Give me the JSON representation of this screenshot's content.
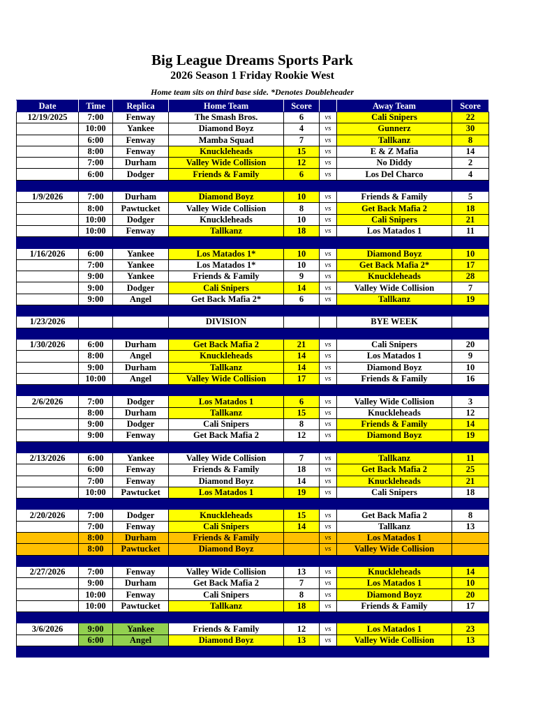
{
  "title": "Big League Dreams Sports Park",
  "subtitle": "2026 Season 1 Friday Rookie West",
  "note": "Home team sits on third base side.  *Denotes Doubleheader",
  "colors": {
    "header": "#000080",
    "winner": "#ffff00",
    "pending": "#ffc000",
    "changed": "#92d050"
  },
  "headers": [
    "Date",
    "Time",
    "Replica",
    "Home Team",
    "Score",
    "",
    "Away Team",
    "Score"
  ],
  "vs": "vs",
  "blocks": [
    {
      "date": "12/19/2025",
      "games": [
        {
          "time": "7:00",
          "field": "Fenway",
          "home": "The Smash Bros.",
          "hs": "6",
          "away": "Cali Snipers",
          "as": "22",
          "winner": "away"
        },
        {
          "time": "10:00",
          "field": "Yankee",
          "home": "Diamond Boyz",
          "hs": "4",
          "away": "Gunnerz",
          "as": "30",
          "winner": "away"
        },
        {
          "time": "6:00",
          "field": "Fenway",
          "home": "Mamba Squad",
          "hs": "7",
          "away": "Tallkanz",
          "as": "8",
          "winner": "away"
        },
        {
          "time": "8:00",
          "field": "Fenway",
          "home": "Knuckleheads",
          "hs": "15",
          "away": "E & Z Mafia",
          "as": "14",
          "winner": "home"
        },
        {
          "time": "7:00",
          "field": "Durham",
          "home": "Valley Wide Collision",
          "hs": "12",
          "away": "No Diddy",
          "as": "2",
          "winner": "home"
        },
        {
          "time": "6:00",
          "field": "Dodger",
          "home": "Friends & Family",
          "hs": "6",
          "away": "Los Del Charco",
          "as": "4",
          "winner": "home"
        }
      ]
    },
    {
      "date": "1/9/2026",
      "games": [
        {
          "time": "7:00",
          "field": "Durham",
          "home": "Diamond Boyz",
          "hs": "10",
          "away": "Friends & Family",
          "as": "5",
          "winner": "home"
        },
        {
          "time": "8:00",
          "field": "Pawtucket",
          "home": "Valley Wide Collision",
          "hs": "8",
          "away": "Get Back Mafia 2",
          "as": "18",
          "winner": "away"
        },
        {
          "time": "10:00",
          "field": "Dodger",
          "home": "Knuckleheads",
          "hs": "10",
          "away": "Cali Snipers",
          "as": "21",
          "winner": "away"
        },
        {
          "time": "10:00",
          "field": "Fenway",
          "home": "Tallkanz",
          "hs": "18",
          "away": "Los Matados 1",
          "as": "11",
          "winner": "home"
        }
      ]
    },
    {
      "date": "1/16/2026",
      "games": [
        {
          "time": "6:00",
          "field": "Yankee",
          "home": "Los Matados 1*",
          "hs": "10",
          "away": "Diamond Boyz",
          "as": "10",
          "winner": "both"
        },
        {
          "time": "7:00",
          "field": "Yankee",
          "home": "Los Matados 1*",
          "hs": "10",
          "away": "Get Back Mafia 2*",
          "as": "17",
          "winner": "away"
        },
        {
          "time": "9:00",
          "field": "Yankee",
          "home": "Friends & Family",
          "hs": "9",
          "away": "Knuckleheads",
          "as": "28",
          "winner": "away"
        },
        {
          "time": "9:00",
          "field": "Dodger",
          "home": "Cali Snipers",
          "hs": "14",
          "away": "Valley Wide Collision",
          "as": "7",
          "winner": "home"
        },
        {
          "time": "9:00",
          "field": "Angel",
          "home": "Get Back Mafia 2*",
          "hs": "6",
          "away": "Tallkanz",
          "as": "19",
          "winner": "away"
        }
      ]
    },
    {
      "date": "1/23/2026",
      "games": [
        {
          "time": "",
          "field": "",
          "home": "DIVISION",
          "hs": "",
          "away": "BYE WEEK",
          "as": "",
          "winner": "none",
          "novs": true
        }
      ]
    },
    {
      "date": "1/30/2026",
      "games": [
        {
          "time": "6:00",
          "field": "Durham",
          "home": "Get Back Mafia 2",
          "hs": "21",
          "away": "Cali Snipers",
          "as": "20",
          "winner": "home"
        },
        {
          "time": "8:00",
          "field": "Angel",
          "home": "Knuckleheads",
          "hs": "14",
          "away": "Los Matados 1",
          "as": "9",
          "winner": "home"
        },
        {
          "time": "9:00",
          "field": "Durham",
          "home": "Tallkanz",
          "hs": "14",
          "away": "Diamond Boyz",
          "as": "10",
          "winner": "home"
        },
        {
          "time": "10:00",
          "field": "Angel",
          "home": "Valley Wide Collision",
          "hs": "17",
          "away": "Friends & Family",
          "as": "16",
          "winner": "home"
        }
      ]
    },
    {
      "date": "2/6/2026",
      "games": [
        {
          "time": "7:00",
          "field": "Dodger",
          "home": "Los Matados 1",
          "hs": "6",
          "away": "Valley Wide Collision",
          "as": "3",
          "winner": "home"
        },
        {
          "time": "8:00",
          "field": "Durham",
          "home": "Tallkanz",
          "hs": "15",
          "away": "Knuckleheads",
          "as": "12",
          "winner": "home"
        },
        {
          "time": "9:00",
          "field": "Dodger",
          "home": "Cali Snipers",
          "hs": "8",
          "away": "Friends & Family",
          "as": "14",
          "winner": "away"
        },
        {
          "time": "9:00",
          "field": "Fenway",
          "home": "Get Back Mafia 2",
          "hs": "12",
          "away": "Diamond Boyz",
          "as": "19",
          "winner": "away"
        }
      ]
    },
    {
      "date": "2/13/2026",
      "games": [
        {
          "time": "6:00",
          "field": "Yankee",
          "home": "Valley Wide Collision",
          "hs": "7",
          "away": "Tallkanz",
          "as": "11",
          "winner": "away"
        },
        {
          "time": "6:00",
          "field": "Fenway",
          "home": "Friends & Family",
          "hs": "18",
          "away": "Get Back Mafia 2",
          "as": "25",
          "winner": "away"
        },
        {
          "time": "7:00",
          "field": "Fenway",
          "home": "Diamond Boyz",
          "hs": "14",
          "away": "Knuckleheads",
          "as": "21",
          "winner": "away"
        },
        {
          "time": "10:00",
          "field": "Pawtucket",
          "home": "Los Matados 1",
          "hs": "19",
          "away": "Cali Snipers",
          "as": "18",
          "winner": "home"
        }
      ]
    },
    {
      "date": "2/20/2026",
      "games": [
        {
          "time": "7:00",
          "field": "Dodger",
          "home": "Knuckleheads",
          "hs": "15",
          "away": "Get Back Mafia 2",
          "as": "8",
          "winner": "home"
        },
        {
          "time": "7:00",
          "field": "Fenway",
          "home": "Cali Snipers",
          "hs": "14",
          "away": "Tallkanz",
          "as": "13",
          "winner": "home"
        },
        {
          "time": "8:00",
          "field": "Durham",
          "home": "Friends & Family",
          "hs": "",
          "away": "Los Matados 1",
          "as": "",
          "winner": "none",
          "row": "orange"
        },
        {
          "time": "8:00",
          "field": "Pawtucket",
          "home": "Diamond Boyz",
          "hs": "",
          "away": "Valley Wide Collision",
          "as": "",
          "winner": "none",
          "row": "orange"
        }
      ]
    },
    {
      "date": "2/27/2026",
      "games": [
        {
          "time": "7:00",
          "field": "Fenway",
          "home": "Valley Wide Collision",
          "hs": "13",
          "away": "Knuckleheads",
          "as": "14",
          "winner": "away"
        },
        {
          "time": "9:00",
          "field": "Durham",
          "home": "Get Back Mafia 2",
          "hs": "7",
          "away": "Los Matados 1",
          "as": "10",
          "winner": "away"
        },
        {
          "time": "10:00",
          "field": "Fenway",
          "home": "Cali Snipers",
          "hs": "8",
          "away": "Diamond Boyz",
          "as": "20",
          "winner": "away"
        },
        {
          "time": "10:00",
          "field": "Pawtucket",
          "home": "Tallkanz",
          "hs": "18",
          "away": "Friends & Family",
          "as": "17",
          "winner": "home"
        }
      ]
    },
    {
      "date": "3/6/2026",
      "games": [
        {
          "time": "9:00",
          "field": "Yankee",
          "home": "Friends & Family",
          "hs": "12",
          "away": "Los Matados 1",
          "as": "23",
          "winner": "away",
          "green": true
        },
        {
          "time": "6:00",
          "field": "Angel",
          "home": "Diamond Boyz",
          "hs": "13",
          "away": "Valley Wide Collision",
          "as": "13",
          "winner": "both",
          "green": true
        }
      ]
    }
  ]
}
